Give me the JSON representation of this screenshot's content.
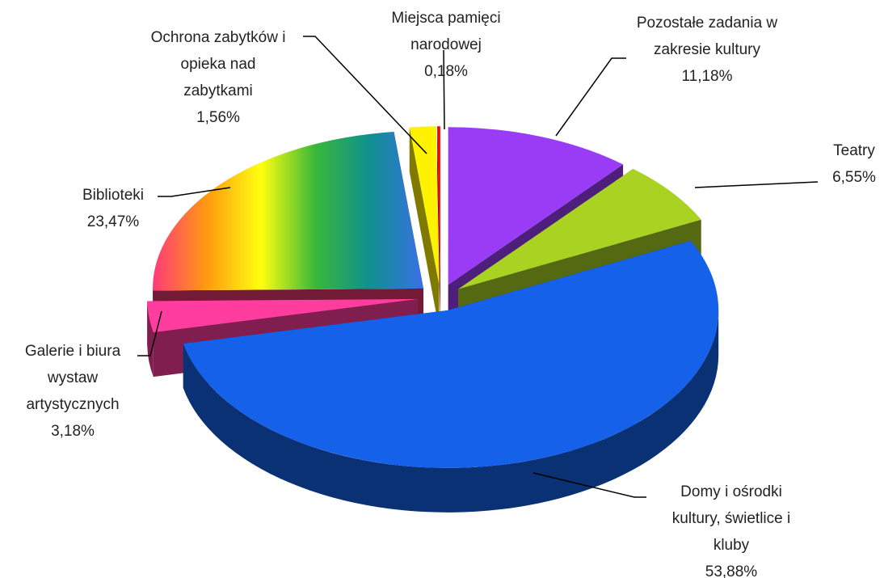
{
  "chart_data": {
    "type": "pie3d",
    "categories": [
      "Pozostałe zadania w zakresie kultury",
      "Teatry",
      "Domy i ośrodki kultury, świetlice i kluby",
      "Galerie i biura wystaw artystycznych",
      "Biblioteki",
      "Ochrona zabytków i opieka nad zabytkami",
      "Miejsca pamięci narodowej"
    ],
    "values": [
      11.18,
      6.55,
      53.88,
      3.18,
      23.47,
      1.56,
      0.18
    ],
    "value_labels": [
      "11,18%",
      "6,55%",
      "53,88%",
      "3,18%",
      "23,47%",
      "1,56%",
      "0,18%"
    ],
    "colors": [
      "#9a3cf6",
      "#a9d223",
      "#1561ea",
      "#ff3d9e",
      [
        "#ff3a7a",
        "#ff9a10",
        "#ffff10",
        "#38b838",
        "#10908f",
        "#3a70e6"
      ],
      "#fff200",
      "#ff0000"
    ]
  }
}
